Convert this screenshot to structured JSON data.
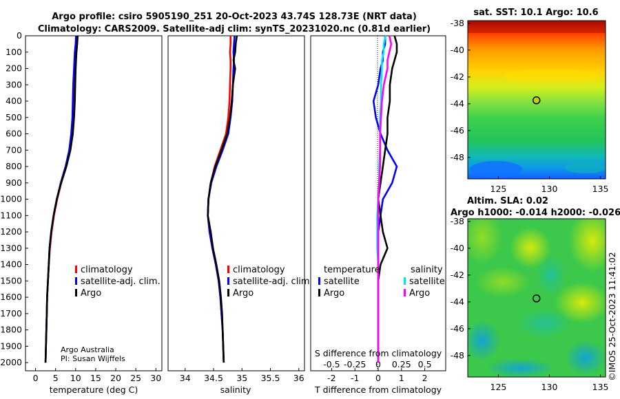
{
  "header": {
    "title_line1": "Argo profile: csiro 5905190_251 20-Oct-2023 43.74S 128.73E (NRT data)",
    "title_line2": "Climatology: CARS2009. Satellite-adj clim: synTS_20231020.nc (0.81d earlier)"
  },
  "credits": {
    "line1": "Argo Australia",
    "line2": "PI: Susan Wijffels",
    "imos": "©IMOS 25-Oct-2023 11:41:02"
  },
  "depth_axis": {
    "range": [
      0,
      2050
    ],
    "ticks": [
      "0",
      "100",
      "200",
      "300",
      "400",
      "500",
      "600",
      "700",
      "800",
      "900",
      "1000",
      "1100",
      "1200",
      "1300",
      "1400",
      "1500",
      "1600",
      "1700",
      "1800",
      "1900",
      "2000"
    ]
  },
  "colors": {
    "climatology": "#ff0000",
    "satellite": "#0000ff",
    "argo": "#000000",
    "s_satellite": "#00e5ee",
    "s_argo": "#ff00ff",
    "dot": "#000000"
  },
  "chart_data": [
    {
      "type": "line",
      "name": "temperature",
      "xlabel": "temperature (deg C)",
      "ylabel": "depth",
      "xlim": [
        -2.5,
        31.5
      ],
      "ylim": [
        2050,
        0
      ],
      "xticks": [
        "0",
        "5",
        "10",
        "15",
        "20",
        "25",
        "30"
      ],
      "depth": [
        0,
        50,
        100,
        150,
        200,
        300,
        400,
        500,
        600,
        700,
        800,
        900,
        1000,
        1100,
        1200,
        1300,
        1400,
        1500,
        1600,
        1700,
        1800,
        1900,
        2000
      ],
      "series": [
        {
          "name": "climatology",
          "color": "#ff0000",
          "values": [
            10.2,
            10.1,
            9.9,
            9.8,
            9.7,
            9.6,
            9.5,
            9.3,
            9.0,
            8.5,
            7.6,
            6.4,
            5.4,
            4.6,
            4.0,
            3.6,
            3.3,
            3.1,
            2.9,
            2.8,
            2.7,
            2.6,
            2.5
          ]
        },
        {
          "name": "satellite-adj. clim.",
          "color": "#0000ff",
          "values": [
            10.1,
            10.0,
            9.8,
            9.7,
            9.6,
            9.4,
            9.3,
            9.2,
            8.9,
            8.4,
            7.5,
            6.3,
            5.3,
            4.5,
            3.9,
            3.5,
            3.3,
            3.1,
            2.9,
            2.8,
            2.7,
            2.6,
            2.5
          ]
        },
        {
          "name": "Argo",
          "color": "#000000",
          "values": [
            10.5,
            10.4,
            10.2,
            10.1,
            10.0,
            9.9,
            9.8,
            9.6,
            9.3,
            8.7,
            7.7,
            6.4,
            5.3,
            4.5,
            3.9,
            3.5,
            3.3,
            3.1,
            2.9,
            2.8,
            2.7,
            2.6,
            2.5
          ]
        }
      ],
      "legend": [
        "climatology",
        "satellite-adj. clim.",
        "Argo"
      ],
      "legend_position": "lower-right"
    },
    {
      "type": "line",
      "name": "salinity",
      "xlabel": "salinity",
      "ylabel": "depth",
      "xlim": [
        33.7,
        36.1
      ],
      "ylim": [
        2050,
        0
      ],
      "xticks": [
        "34",
        "34.5",
        "35",
        "35.5",
        "36"
      ],
      "depth": [
        0,
        50,
        100,
        150,
        200,
        300,
        400,
        500,
        600,
        700,
        800,
        900,
        1000,
        1100,
        1200,
        1300,
        1400,
        1500,
        1600,
        1700,
        1800,
        1900,
        2000
      ],
      "series": [
        {
          "name": "climatology",
          "color": "#ff0000",
          "values": [
            34.8,
            34.8,
            34.79,
            34.8,
            34.8,
            34.79,
            34.78,
            34.76,
            34.72,
            34.62,
            34.52,
            34.45,
            34.41,
            34.4,
            34.43,
            34.48,
            34.54,
            34.59,
            34.62,
            34.64,
            34.66,
            34.67,
            34.68
          ]
        },
        {
          "name": "satellite-adj. clim.",
          "color": "#0000ff",
          "values": [
            34.87,
            34.86,
            34.85,
            34.86,
            34.85,
            34.84,
            34.83,
            34.8,
            34.76,
            34.66,
            34.55,
            34.46,
            34.41,
            34.4,
            34.43,
            34.48,
            34.54,
            34.59,
            34.62,
            34.64,
            34.66,
            34.67,
            34.68
          ]
        },
        {
          "name": "Argo",
          "color": "#000000",
          "values": [
            34.91,
            34.89,
            34.88,
            34.85,
            34.88,
            34.84,
            34.82,
            34.79,
            34.74,
            34.64,
            34.53,
            34.45,
            34.41,
            34.4,
            34.45,
            34.49,
            34.55,
            34.6,
            34.63,
            34.65,
            34.66,
            34.67,
            34.68
          ]
        }
      ],
      "legend": [
        "climatology",
        "satellite-adj. clim.",
        "Argo"
      ],
      "legend_position": "lower-right"
    },
    {
      "type": "line",
      "name": "differences",
      "xlabel": "T difference from climatology",
      "xlabel_top": "S difference from climatology",
      "ylabel": "depth",
      "xlim": [
        -2.9,
        2.9
      ],
      "ylim": [
        2050,
        0
      ],
      "xticks": [
        "-2",
        "-1",
        "0",
        "1",
        "2"
      ],
      "sticks": [
        "-0.5",
        "-0.25",
        "0",
        "0.25",
        "0.5"
      ],
      "depth": [
        0,
        50,
        100,
        150,
        200,
        300,
        400,
        500,
        600,
        700,
        800,
        900,
        1000,
        1100,
        1200,
        1300,
        1400,
        1500,
        1600,
        1700,
        1800,
        1900,
        2000
      ],
      "series": [
        {
          "name": "temperature satellite",
          "color": "#0000ff",
          "values": [
            0.3,
            0.3,
            0.2,
            0.2,
            0.1,
            0.0,
            -0.2,
            -0.1,
            0.1,
            0.4,
            0.8,
            0.6,
            0.2,
            0.1,
            0.0,
            0.0,
            0.0,
            0.0,
            0.0,
            0.0,
            0.0,
            0.0,
            0.0
          ]
        },
        {
          "name": "temperature Argo",
          "color": "#000000",
          "values": [
            0.7,
            0.8,
            0.8,
            0.7,
            0.6,
            0.5,
            0.5,
            0.4,
            0.4,
            0.3,
            0.2,
            0.1,
            0.0,
            0.1,
            0.2,
            0.4,
            0.1,
            0.0,
            0.0,
            0.0,
            0.0,
            0.0,
            0.0
          ]
        },
        {
          "name": "salinity satellite",
          "color": "#00e5ee",
          "values": [
            0.08,
            0.06,
            0.06,
            0.04,
            0.04,
            0.03,
            0.03,
            0.02,
            0.02,
            0.02,
            0.01,
            0.01,
            0.0,
            -0.01,
            -0.01,
            -0.01,
            0.0,
            0.0,
            0.0,
            0.0,
            0.0,
            0.0,
            0.0
          ]
        },
        {
          "name": "salinity Argo",
          "color": "#ff00ff",
          "values": [
            0.12,
            0.14,
            0.12,
            0.1,
            0.1,
            0.06,
            0.04,
            0.03,
            0.02,
            0.02,
            0.02,
            0.01,
            0.0,
            0.0,
            0.0,
            0.0,
            0.0,
            0.0,
            0.0,
            0.0,
            0.0,
            0.0,
            0.0
          ]
        }
      ],
      "legend_temperature_title": "temperature",
      "legend_salinity_title": "salinity",
      "legend_temperature": [
        "satellite",
        "Argo"
      ],
      "legend_salinity": [
        "satellite",
        "Argo"
      ]
    },
    {
      "type": "heatmap",
      "name": "sst_map",
      "title": "sat. SST: 10.1 Argo: 10.6",
      "xlim": [
        122,
        135.5
      ],
      "ylim": [
        -49.6,
        -37.8
      ],
      "xticks": [
        "125",
        "130",
        "135"
      ],
      "yticks": [
        "-38",
        "-40",
        "-42",
        "-44",
        "-46",
        "-48"
      ],
      "marker": [
        128.73,
        -43.74
      ]
    },
    {
      "type": "heatmap",
      "name": "sla_map",
      "title_line1": "Altim. SLA: 0.02",
      "title_line2": "Argo h1000: -0.014 h2000: -0.026",
      "xlim": [
        122,
        135.5
      ],
      "ylim": [
        -49.6,
        -37.8
      ],
      "xticks": [
        "125",
        "130",
        "135"
      ],
      "yticks": [
        "-38",
        "-40",
        "-42",
        "-44",
        "-46",
        "-48"
      ],
      "marker": [
        128.73,
        -43.74
      ]
    }
  ]
}
